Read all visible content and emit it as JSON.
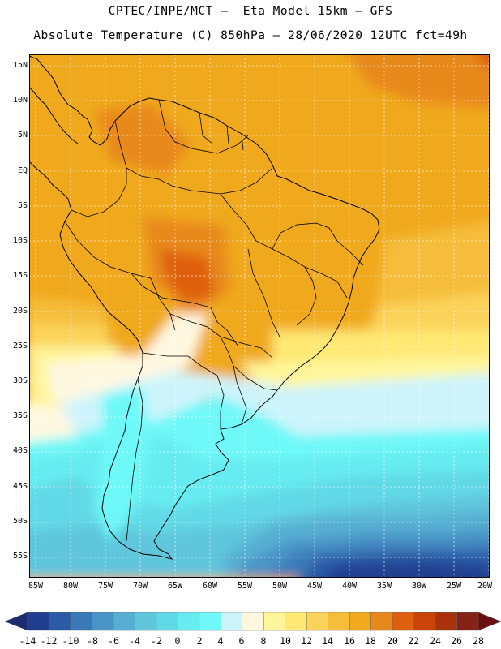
{
  "header": {
    "title_line1": "CPTEC/INPE/MCT –  Eta Model 15km – GFS",
    "title_line2": "Absolute Temperature (C) 850hPa – 28/06/2020 12UTC fct=49h"
  },
  "map": {
    "lat_labels": [
      "15N",
      "10N",
      "5N",
      "EQ",
      "5S",
      "10S",
      "15S",
      "20S",
      "25S",
      "30S",
      "35S",
      "40S",
      "45S",
      "50S",
      "55S"
    ],
    "lon_labels": [
      "85W",
      "80W",
      "75W",
      "70W",
      "65W",
      "60W",
      "55W",
      "50W",
      "45W",
      "40W",
      "35W",
      "30W",
      "25W",
      "20W"
    ],
    "lat_range": [
      17,
      -58
    ],
    "lon_range": [
      -86,
      -20
    ]
  },
  "colorbar": {
    "labels": [
      "-14",
      "-12",
      "-10",
      "-8",
      "-6",
      "-4",
      "-2",
      "0",
      "2",
      "4",
      "6",
      "8",
      "10",
      "12",
      "14",
      "16",
      "18",
      "20",
      "22",
      "24",
      "26",
      "28"
    ],
    "colors": [
      "#223f8f",
      "#2b5aa6",
      "#3a78b8",
      "#4a93c6",
      "#56aed2",
      "#5fc6dc",
      "#62d9e6",
      "#66ecf0",
      "#6ef8f8",
      "#cdf4fb",
      "#fff8e1",
      "#fff59a",
      "#ffe873",
      "#fbd35a",
      "#f5bd3a",
      "#f0a91a",
      "#e8891e",
      "#df5f10",
      "#c8440a",
      "#a8330a",
      "#852316"
    ],
    "low_color": "#1b2d70",
    "high_color": "#6b0f12"
  }
}
